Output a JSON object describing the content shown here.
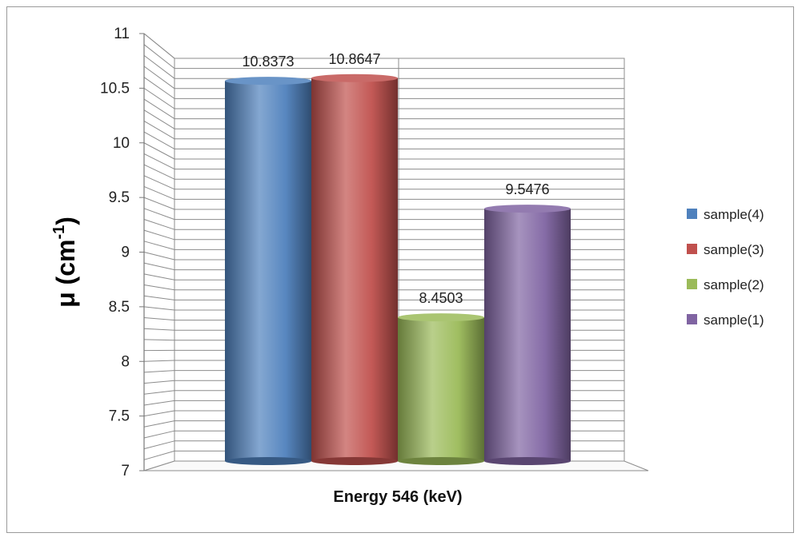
{
  "chart_data": {
    "type": "bar",
    "style": "3d-cylinder",
    "title": "",
    "xlabel": "Energy 546 (keV)",
    "ylabel_base": "μ (cm",
    "ylabel_sup": "-1",
    "ylabel_close": ")",
    "ylim": [
      7,
      11
    ],
    "yticks": [
      "7",
      "7.5",
      "8",
      "8.5",
      "9",
      "9.5",
      "10",
      "10.5",
      "11"
    ],
    "ytick_values": [
      7,
      7.5,
      8,
      8.5,
      9,
      9.5,
      10,
      10.5,
      11
    ],
    "grid": true,
    "legend_position": "right",
    "series": [
      {
        "name": "sample(4)",
        "value": 10.8373,
        "label": "10.8373",
        "color": "#4f81bd"
      },
      {
        "name": "sample(3)",
        "value": 10.8647,
        "label": "10.8647",
        "color": "#c0504d"
      },
      {
        "name": "sample(2)",
        "value": 8.4503,
        "label": "8.4503",
        "color": "#9bbb59"
      },
      {
        "name": "sample(1)",
        "value": 9.5476,
        "label": "9.5476",
        "color": "#8064a2"
      }
    ]
  }
}
